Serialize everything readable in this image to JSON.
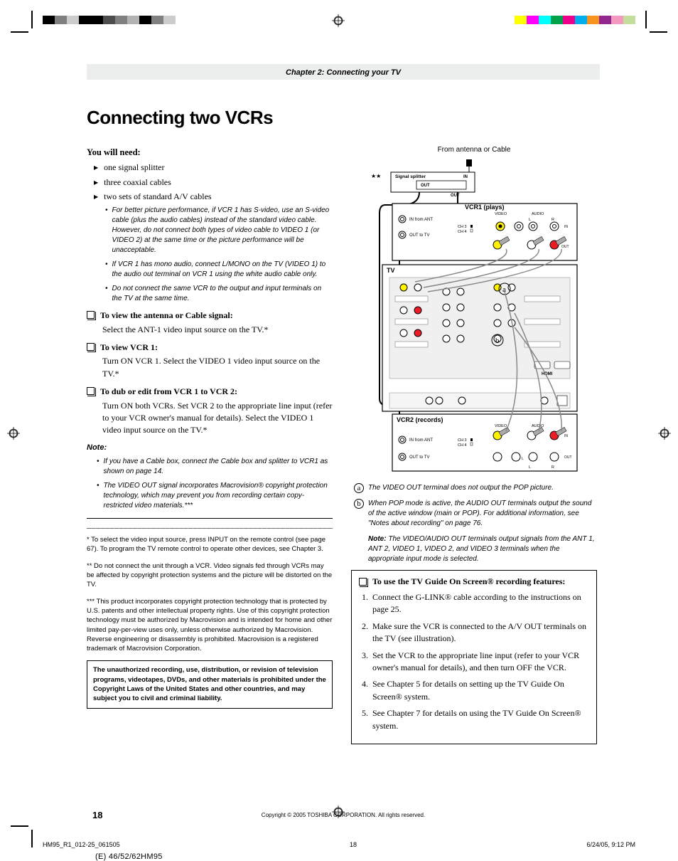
{
  "printer_swatches_left": [
    "#000000",
    "#7f7f7f",
    "#cccccc",
    "#000000",
    "#000000",
    "#4d4d4d",
    "#808080",
    "#b3b3b3",
    "#000000",
    "#808080",
    "#cccccc",
    "#ffffff"
  ],
  "printer_swatches_right": [
    "#ffff00",
    "#ff00ff",
    "#00ffff",
    "#00a14b",
    "#ec008c",
    "#00adee",
    "#f7941d",
    "#92278f",
    "#f49ac1",
    "#c4df9b"
  ],
  "chapter": "Chapter 2: Connecting your TV",
  "heading": "Connecting two VCRs",
  "need_head": "You will need:",
  "need_items": [
    "one signal splitter",
    "three coaxial cables",
    "two sets of standard A/V cables"
  ],
  "need_sub": [
    "For better picture performance, if VCR 1 has S-video, use an S-video cable (plus the audio cables) instead of the standard video cable. However, do not connect both types of video cable to VIDEO 1 (or VIDEO 2) at the same time or the picture performance will be unacceptable.",
    "If VCR 1 has mono audio, connect L/MONO on the TV (VIDEO 1) to the audio out terminal on VCR 1 using the white audio cable only.",
    "Do not connect the same VCR to the output and input terminals on the TV at the same time."
  ],
  "checks": [
    {
      "title": "To view the antenna or Cable signal:",
      "body": "Select the ANT-1 video input source on the TV.*"
    },
    {
      "title": "To view VCR 1:",
      "body": "Turn ON VCR 1. Select the VIDEO 1 video input source on the TV.*"
    },
    {
      "title": "To dub or edit from VCR 1 to VCR 2:",
      "body": "Turn ON both VCRs. Set VCR 2 to the appropriate line input (refer to your VCR owner's manual for details). Select the VIDEO 1 video input source on the TV.*"
    }
  ],
  "note_head": "Note:",
  "note_items": [
    "If you have a Cable box, connect the Cable box and splitter to VCR1 as shown on page 14.",
    "The VIDEO OUT signal incorporates Macrovision® copyright protection technology, which may prevent you from recording certain copy-restricted video materials.***"
  ],
  "footnotes": [
    "* To select the video input source, press INPUT on the remote control (see page 67). To program the TV remote control to operate other devices, see Chapter 3.",
    "** Do not connect the unit through a VCR. Video signals fed through VCRs may be affected by copyright protection systems and the picture will be distorted on the TV.",
    "*** This product incorporates copyright protection technology that is protected by U.S. patents and other intellectual property rights. Use of this copyright protection technology must be authorized by Macrovision and is intended for home and other limited pay-per-view uses only, unless otherwise authorized by Macrovision. Reverse engineering or disassembly is prohibited. Macrovision is a registered trademark of Macrovision Corporation."
  ],
  "warning_box": "The unauthorized recording, use, distribution, or revision of television programs, videotapes, DVDs, and other materials is prohibited under the Copyright Laws of the United States and other countries, and may subject you to civil and criminal liability.",
  "diagram": {
    "caption": "From antenna or Cable",
    "splitter_label": "Signal splitter",
    "splitter_in": "IN",
    "splitter_out": "OUT",
    "vcr1_title": "VCR1 (plays)",
    "vcr2_title": "VCR2 (records)",
    "tv_title": "TV",
    "in_from_ant": "IN from ANT",
    "out_to_tv": "OUT to TV",
    "ch3": "CH 3",
    "ch4": "CH 4",
    "video": "VIDEO",
    "audio": "AUDIO",
    "l": "L",
    "r": "R",
    "in": "IN",
    "out": "OUT",
    "star2": "★★",
    "colors": {
      "video_jack": "#fff200",
      "audio_l": "#ffffff",
      "audio_r": "#ed1c24"
    }
  },
  "legend_a": "The VIDEO OUT terminal does not output the POP picture.",
  "legend_b": "When POP mode is active, the AUDIO OUT terminals output the sound of the active window (main or POP). For additional information, see \"Notes about recording\" on page 76.",
  "legend_note_bold": "Note:",
  "legend_note": " The VIDEO/AUDIO OUT terminals output signals from the ANT 1, ANT 2, VIDEO 1, VIDEO 2, and VIDEO 3 terminals when the appropriate input mode is selected.",
  "tvg_title": "To use the TV Guide On Screen® recording features:",
  "tvg_items": [
    "Connect the G-LINK® cable according to the instructions on page 25.",
    "Make sure the VCR is connected to the A/V OUT terminals on the TV (see illustration).",
    "Set the VCR to the appropriate line input (refer to your VCR owner's manual for details), and then turn OFF the VCR.",
    "See Chapter 5 for details on setting up the TV Guide On Screen® system.",
    "See Chapter 7 for details on using the TV Guide On Screen® system."
  ],
  "page_num": "18",
  "copyright": "Copyright © 2005 TOSHIBA CORPORATION. All rights reserved.",
  "print_filename": "HM95_R1_012-25_061505",
  "print_page": "18",
  "print_datetime": "6/24/05, 9:12 PM",
  "model": "(E) 46/52/62HM95"
}
